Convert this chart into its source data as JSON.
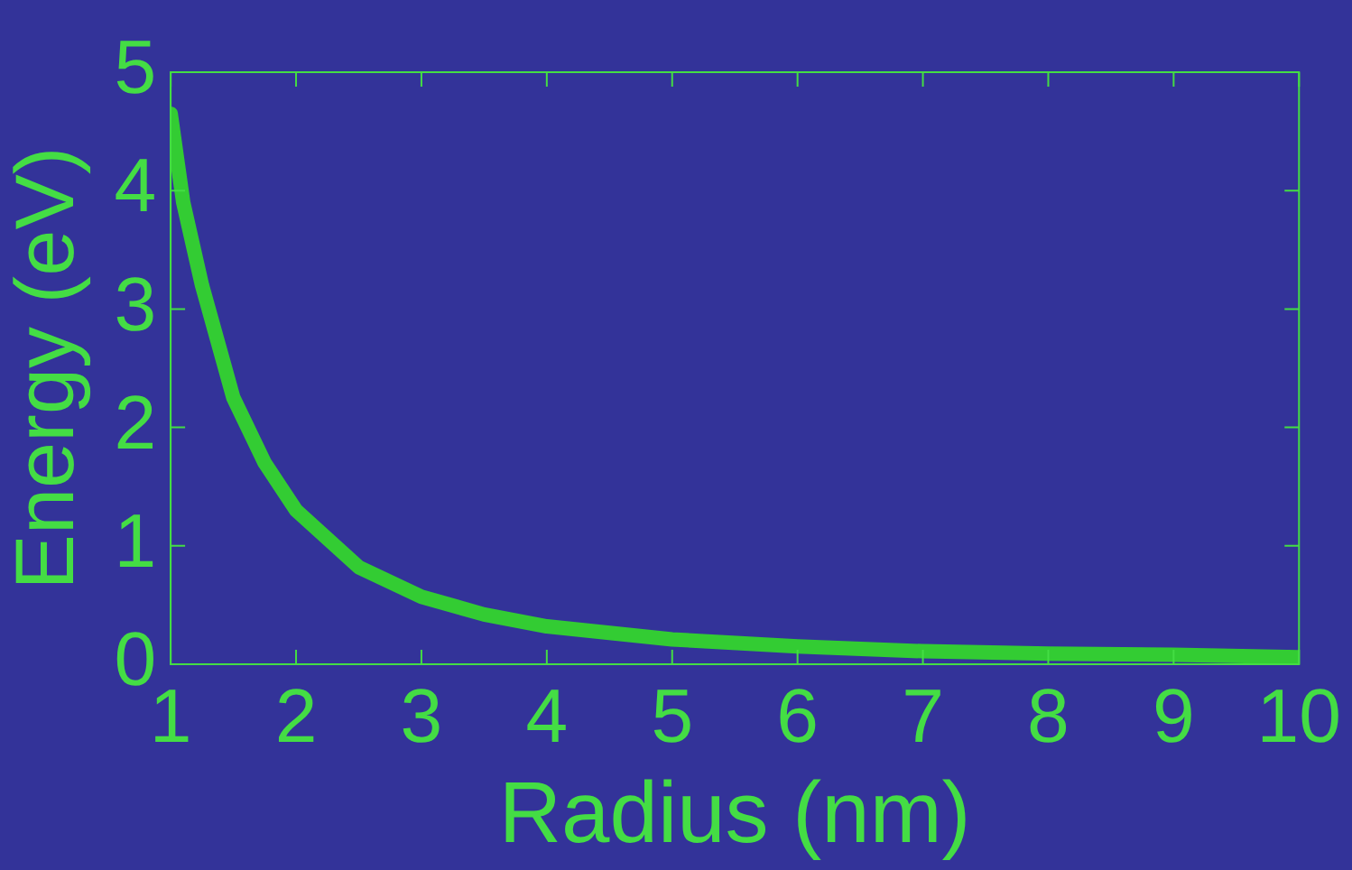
{
  "chart_data": {
    "type": "line",
    "xlabel": "Radius (nm)",
    "ylabel": "Energy (eV)",
    "x": [
      1,
      1.1,
      1.25,
      1.5,
      1.75,
      2,
      2.5,
      3,
      3.5,
      4,
      5,
      6,
      7,
      8,
      9,
      10
    ],
    "series": [
      {
        "color": "#33cc33",
        "values": [
          4.65,
          3.9,
          3.2,
          2.25,
          1.7,
          1.3,
          0.82,
          0.57,
          0.42,
          0.32,
          0.21,
          0.15,
          0.11,
          0.09,
          0.08,
          0.06
        ]
      }
    ],
    "xlim": [
      1,
      10
    ],
    "xticks": [
      1,
      2,
      3,
      4,
      5,
      6,
      7,
      8,
      9,
      10
    ],
    "ylim": [
      0,
      5
    ],
    "yticks": [
      0,
      1,
      2,
      3,
      4,
      5
    ],
    "grid": false,
    "legend": false,
    "marker": "none",
    "line_style": "solid"
  }
}
